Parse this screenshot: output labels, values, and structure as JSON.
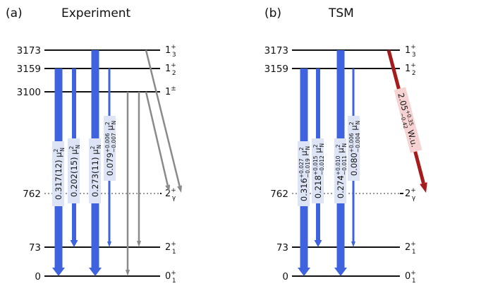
{
  "panels": [
    {
      "id": "experiment",
      "tag": "(a)",
      "title": "Experiment",
      "levels": [
        {
          "energy": "3173",
          "spin": "1",
          "sub": "3",
          "sup": "+"
        },
        {
          "energy": "3159",
          "spin": "1",
          "sub": "2",
          "sup": "+"
        },
        {
          "energy": "3100",
          "spin": "1",
          "sub": "",
          "sup": "±"
        },
        {
          "energy": "762",
          "spin": "2",
          "sub": "γ",
          "sup": "+"
        },
        {
          "energy": "73",
          "spin": "2",
          "sub": "1",
          "sup": "+"
        },
        {
          "energy": "0",
          "spin": "0",
          "sub": "1",
          "sup": "+"
        }
      ],
      "transitions": [
        {
          "main": "0.317(12)",
          "up": "",
          "dn": "",
          "unit": "μ",
          "unit_sub": "N",
          "unit_sup": "2"
        },
        {
          "main": "0.202(15)",
          "up": "",
          "dn": "",
          "unit": "μ",
          "unit_sub": "N",
          "unit_sup": "2"
        },
        {
          "main": "0.273(11)",
          "up": "",
          "dn": "",
          "unit": "μ",
          "unit_sub": "N",
          "unit_sup": "2"
        },
        {
          "main": "0.079",
          "up": "+0.006",
          "dn": "−0.007",
          "unit": "μ",
          "unit_sub": "N",
          "unit_sup": "2"
        }
      ]
    },
    {
      "id": "tsm",
      "tag": "(b)",
      "title": "TSM",
      "levels": [
        {
          "energy": "3173",
          "spin": "1",
          "sub": "3",
          "sup": "+"
        },
        {
          "energy": "3159",
          "spin": "1",
          "sub": "2",
          "sup": "+"
        },
        {
          "energy": "762",
          "spin": "2",
          "sub": "γ",
          "sup": "+"
        },
        {
          "energy": "73",
          "spin": "2",
          "sub": "1",
          "sup": "+"
        },
        {
          "energy": "0",
          "spin": "0",
          "sub": "1",
          "sup": "+"
        }
      ],
      "transitions": [
        {
          "main": "0.316",
          "up": "+0.027",
          "dn": "−0.019",
          "unit": "μ",
          "unit_sub": "N",
          "unit_sup": "2"
        },
        {
          "main": "0.218",
          "up": "+0.015",
          "dn": "−0.012",
          "unit": "μ",
          "unit_sub": "N",
          "unit_sup": "2"
        },
        {
          "main": "0.274",
          "up": "+0.010",
          "dn": "−0.011",
          "unit": "μ",
          "unit_sub": "N",
          "unit_sup": "2"
        },
        {
          "main": "0.080",
          "up": "+0.006",
          "dn": "−0.004",
          "unit": "μ",
          "unit_sub": "N",
          "unit_sup": "2"
        }
      ],
      "e2_transition": {
        "main": "2.05",
        "up": "+0.35",
        "dn": "−0.42",
        "unit": "W.u."
      }
    }
  ],
  "colors": {
    "m1_arrow": "#3f63de",
    "gray_arrow": "#8a8a8a",
    "e2_arrow": "#a61c1c",
    "e2_label_bg": "#f6d2d2",
    "m1_label_bg": "#dde4f6"
  }
}
